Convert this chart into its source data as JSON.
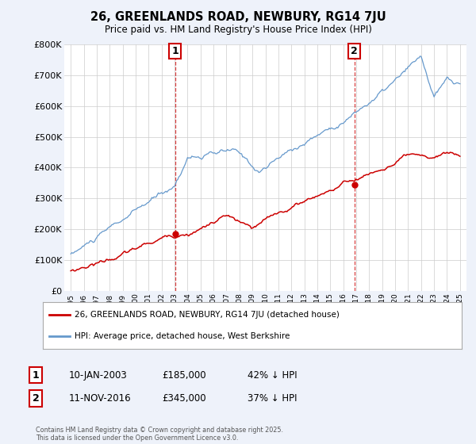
{
  "title": "26, GREENLANDS ROAD, NEWBURY, RG14 7JU",
  "subtitle": "Price paid vs. HM Land Registry's House Price Index (HPI)",
  "ylim": [
    0,
    800000
  ],
  "yticks": [
    0,
    100000,
    200000,
    300000,
    400000,
    500000,
    600000,
    700000,
    800000
  ],
  "ytick_labels": [
    "£0",
    "£100K",
    "£200K",
    "£300K",
    "£400K",
    "£500K",
    "£600K",
    "£700K",
    "£800K"
  ],
  "red_color": "#cc0000",
  "blue_color": "#6699cc",
  "bg_color": "#eef2fa",
  "plot_bg": "#ffffff",
  "grid_color": "#cccccc",
  "legend_red_label": "26, GREENLANDS ROAD, NEWBURY, RG14 7JU (detached house)",
  "legend_blue_label": "HPI: Average price, detached house, West Berkshire",
  "annotation1_date": "10-JAN-2003",
  "annotation1_price": "£185,000",
  "annotation1_pct": "42% ↓ HPI",
  "annotation2_date": "11-NOV-2016",
  "annotation2_price": "£345,000",
  "annotation2_pct": "37% ↓ HPI",
  "footer": "Contains HM Land Registry data © Crown copyright and database right 2025.\nThis data is licensed under the Open Government Licence v3.0.",
  "xstart_year": 1995,
  "xend_year": 2025,
  "marker1_year": 2003.03,
  "marker1_val": 185000,
  "marker2_year": 2016.87,
  "marker2_val": 345000
}
